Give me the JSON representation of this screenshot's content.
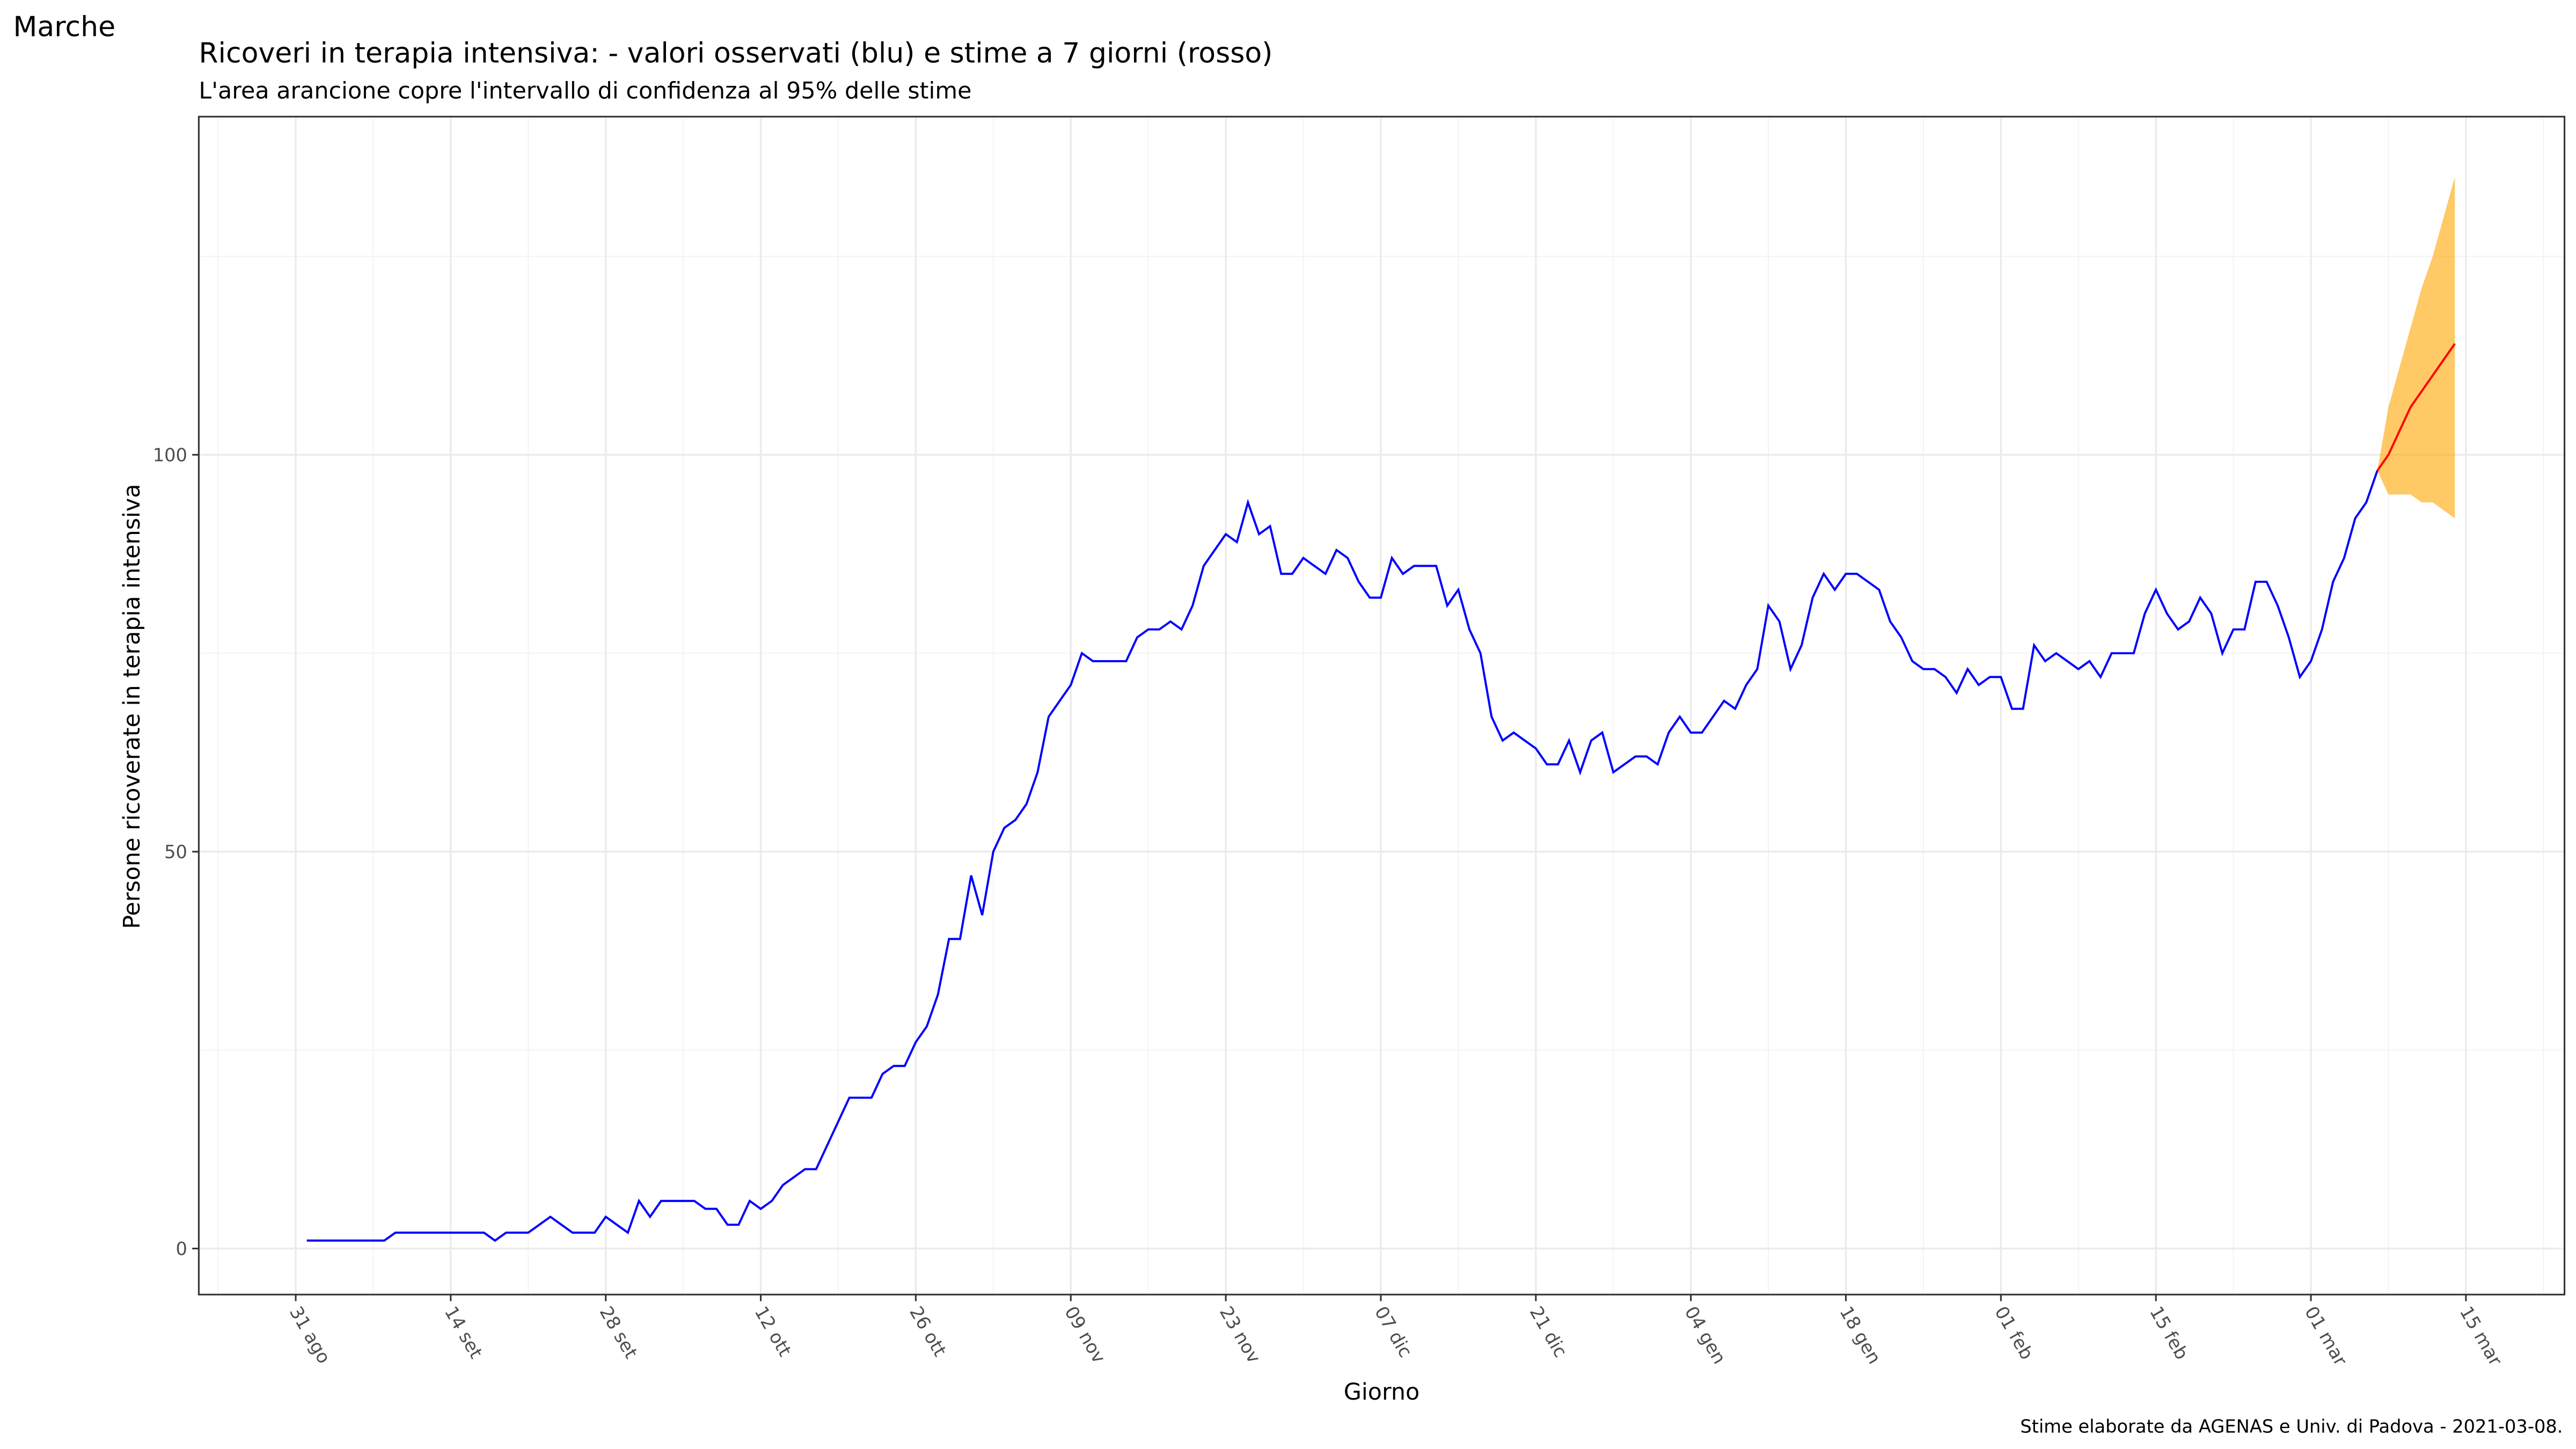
{
  "chart_data": {
    "type": "line",
    "corner_label": "Marche",
    "title": "Ricoveri in terapia intensiva: - valori osservati (blu) e stime a 7 giorni (rosso)",
    "subtitle": "L'area arancione copre l'intervallo di confidenza al 95% delle stime",
    "xlabel": "Giorno",
    "ylabel": "Persone ricoverate in terapia intensiva",
    "caption": "Stime elaborate da AGENAS e Univ. di Padova - 2021-03-08.",
    "grid": true,
    "ylim": [
      -5.8,
      142.6
    ],
    "yticks": [
      0,
      50,
      100
    ],
    "yminor": [
      25,
      75,
      125
    ],
    "categories": [
      "31 ago",
      null,
      null,
      null,
      null,
      null,
      null,
      null,
      null,
      null,
      null,
      null,
      null,
      null,
      "14 set",
      null,
      null,
      null,
      null,
      null,
      null,
      null,
      null,
      null,
      null,
      null,
      null,
      null,
      "28 set",
      null,
      null,
      null,
      null,
      null,
      null,
      null,
      null,
      null,
      null,
      null,
      null,
      null,
      "12 ott",
      null,
      null,
      null,
      null,
      null,
      null,
      null,
      null,
      null,
      null,
      null,
      null,
      null,
      "26 ott",
      null,
      null,
      null,
      null,
      null,
      null,
      null,
      null,
      null,
      null,
      null,
      null,
      null,
      "09 nov",
      null,
      null,
      null,
      null,
      null,
      null,
      null,
      null,
      null,
      null,
      null,
      null,
      null,
      "23 nov",
      null,
      null,
      null,
      null,
      null,
      null,
      null,
      null,
      null,
      null,
      null,
      null,
      null,
      "07 dic",
      null,
      null,
      null,
      null,
      null,
      null,
      null,
      null,
      null,
      null,
      null,
      null,
      null,
      "21 dic",
      null,
      null,
      null,
      null,
      null,
      null,
      null,
      null,
      null,
      null,
      null,
      null,
      null,
      "04 gen",
      null,
      null,
      null,
      null,
      null,
      null,
      null,
      null,
      null,
      null,
      null,
      null,
      null,
      "18 gen",
      null,
      null,
      null,
      null,
      null,
      null,
      null,
      null,
      null,
      null,
      null,
      null,
      null,
      "01 feb",
      null,
      null,
      null,
      null,
      null,
      null,
      null,
      null,
      null,
      null,
      null,
      null,
      null,
      "15 feb",
      null,
      null,
      null,
      null,
      null,
      null,
      null,
      null,
      null,
      null,
      null,
      null,
      null,
      "01 mar",
      null,
      null,
      null,
      null,
      null,
      null,
      null,
      null,
      null,
      null,
      null,
      null,
      null,
      "15 mar"
    ],
    "series": [
      {
        "color": "#0000ff",
        "values": [
          null,
          1,
          1,
          1,
          1,
          1,
          1,
          1,
          1,
          2,
          2,
          2,
          2,
          2,
          2,
          2,
          2,
          2,
          1,
          2,
          2,
          2,
          3,
          4,
          3,
          2,
          2,
          2,
          4,
          3,
          2,
          6,
          4,
          6,
          6,
          6,
          6,
          5,
          5,
          3,
          3,
          6,
          5,
          6,
          8,
          9,
          10,
          10,
          13,
          16,
          19,
          19,
          19,
          22,
          23,
          23,
          26,
          28,
          32,
          39,
          39,
          47,
          42,
          50,
          53,
          54,
          56,
          60,
          67,
          69,
          71,
          75,
          74,
          74,
          74,
          74,
          77,
          78,
          78,
          79,
          78,
          81,
          86,
          88,
          90,
          89,
          94,
          90,
          91,
          85,
          85,
          87,
          86,
          85,
          88,
          87,
          84,
          82,
          82,
          87,
          85,
          86,
          86,
          86,
          81,
          83,
          78,
          75,
          67,
          64,
          65,
          64,
          63,
          61,
          61,
          64,
          60,
          64,
          65,
          60,
          61,
          62,
          62,
          61,
          65,
          67,
          65,
          65,
          67,
          69,
          68,
          71,
          73,
          81,
          79,
          73,
          76,
          82,
          85,
          83,
          85,
          85,
          84,
          83,
          79,
          77,
          74,
          73,
          73,
          72,
          70,
          73,
          71,
          72,
          72,
          68,
          68,
          76,
          74,
          75,
          74,
          73,
          74,
          72,
          75,
          75,
          75,
          80,
          83,
          80,
          78,
          79,
          82,
          80,
          75,
          78,
          78,
          84,
          84,
          81,
          77,
          72,
          74,
          78,
          84,
          87,
          92,
          94,
          98,
          null,
          null,
          null,
          null,
          null,
          null,
          null,
          null
        ]
      },
      {
        "color": "#ff0000",
        "values": [
          null,
          null,
          null,
          null,
          null,
          null,
          null,
          null,
          null,
          null,
          null,
          null,
          null,
          null,
          null,
          null,
          null,
          null,
          null,
          null,
          null,
          null,
          null,
          null,
          null,
          null,
          null,
          null,
          null,
          null,
          null,
          null,
          null,
          null,
          null,
          null,
          null,
          null,
          null,
          null,
          null,
          null,
          null,
          null,
          null,
          null,
          null,
          null,
          null,
          null,
          null,
          null,
          null,
          null,
          null,
          null,
          null,
          null,
          null,
          null,
          null,
          null,
          null,
          null,
          null,
          null,
          null,
          null,
          null,
          null,
          null,
          null,
          null,
          null,
          null,
          null,
          null,
          null,
          null,
          null,
          null,
          null,
          null,
          null,
          null,
          null,
          null,
          null,
          null,
          null,
          null,
          null,
          null,
          null,
          null,
          null,
          null,
          null,
          null,
          null,
          null,
          null,
          null,
          null,
          null,
          null,
          null,
          null,
          null,
          null,
          null,
          null,
          null,
          null,
          null,
          null,
          null,
          null,
          null,
          null,
          null,
          null,
          null,
          null,
          null,
          null,
          null,
          null,
          null,
          null,
          null,
          null,
          null,
          null,
          null,
          null,
          null,
          null,
          null,
          null,
          null,
          null,
          null,
          null,
          null,
          null,
          null,
          null,
          null,
          null,
          null,
          null,
          null,
          null,
          null,
          null,
          null,
          null,
          null,
          null,
          null,
          null,
          null,
          null,
          null,
          null,
          null,
          null,
          null,
          null,
          null,
          null,
          null,
          null,
          null,
          null,
          null,
          null,
          null,
          null,
          null,
          null,
          null,
          null,
          null,
          null,
          null,
          null,
          98,
          100,
          103,
          106,
          108,
          110,
          112,
          114,
          null
        ]
      }
    ],
    "band": {
      "color": "#ffa500",
      "opacity": 0.6,
      "lower": [
        null,
        null,
        null,
        null,
        null,
        null,
        null,
        null,
        null,
        null,
        null,
        null,
        null,
        null,
        null,
        null,
        null,
        null,
        null,
        null,
        null,
        null,
        null,
        null,
        null,
        null,
        null,
        null,
        null,
        null,
        null,
        null,
        null,
        null,
        null,
        null,
        null,
        null,
        null,
        null,
        null,
        null,
        null,
        null,
        null,
        null,
        null,
        null,
        null,
        null,
        null,
        null,
        null,
        null,
        null,
        null,
        null,
        null,
        null,
        null,
        null,
        null,
        null,
        null,
        null,
        null,
        null,
        null,
        null,
        null,
        null,
        null,
        null,
        null,
        null,
        null,
        null,
        null,
        null,
        null,
        null,
        null,
        null,
        null,
        null,
        null,
        null,
        null,
        null,
        null,
        null,
        null,
        null,
        null,
        null,
        null,
        null,
        null,
        null,
        null,
        null,
        null,
        null,
        null,
        null,
        null,
        null,
        null,
        null,
        null,
        null,
        null,
        null,
        null,
        null,
        null,
        null,
        null,
        null,
        null,
        null,
        null,
        null,
        null,
        null,
        null,
        null,
        null,
        null,
        null,
        null,
        null,
        null,
        null,
        null,
        null,
        null,
        null,
        null,
        null,
        null,
        null,
        null,
        null,
        null,
        null,
        null,
        null,
        null,
        null,
        null,
        null,
        null,
        null,
        null,
        null,
        null,
        null,
        null,
        null,
        null,
        null,
        null,
        null,
        null,
        null,
        null,
        null,
        null,
        null,
        null,
        null,
        null,
        null,
        null,
        null,
        null,
        null,
        null,
        null,
        null,
        null,
        null,
        null,
        null,
        null,
        null,
        null,
        98,
        95,
        95,
        95,
        94,
        94,
        93,
        92,
        null
      ],
      "upper": [
        null,
        null,
        null,
        null,
        null,
        null,
        null,
        null,
        null,
        null,
        null,
        null,
        null,
        null,
        null,
        null,
        null,
        null,
        null,
        null,
        null,
        null,
        null,
        null,
        null,
        null,
        null,
        null,
        null,
        null,
        null,
        null,
        null,
        null,
        null,
        null,
        null,
        null,
        null,
        null,
        null,
        null,
        null,
        null,
        null,
        null,
        null,
        null,
        null,
        null,
        null,
        null,
        null,
        null,
        null,
        null,
        null,
        null,
        null,
        null,
        null,
        null,
        null,
        null,
        null,
        null,
        null,
        null,
        null,
        null,
        null,
        null,
        null,
        null,
        null,
        null,
        null,
        null,
        null,
        null,
        null,
        null,
        null,
        null,
        null,
        null,
        null,
        null,
        null,
        null,
        null,
        null,
        null,
        null,
        null,
        null,
        null,
        null,
        null,
        null,
        null,
        null,
        null,
        null,
        null,
        null,
        null,
        null,
        null,
        null,
        null,
        null,
        null,
        null,
        null,
        null,
        null,
        null,
        null,
        null,
        null,
        null,
        null,
        null,
        null,
        null,
        null,
        null,
        null,
        null,
        null,
        null,
        null,
        null,
        null,
        null,
        null,
        null,
        null,
        null,
        null,
        null,
        null,
        null,
        null,
        null,
        null,
        null,
        null,
        null,
        null,
        null,
        null,
        null,
        null,
        null,
        null,
        null,
        null,
        null,
        null,
        null,
        null,
        null,
        null,
        null,
        null,
        null,
        null,
        null,
        null,
        null,
        null,
        null,
        null,
        null,
        null,
        null,
        null,
        null,
        null,
        null,
        null,
        null,
        null,
        null,
        null,
        null,
        98,
        106,
        111,
        116,
        121,
        125,
        130,
        135,
        null
      ]
    }
  }
}
